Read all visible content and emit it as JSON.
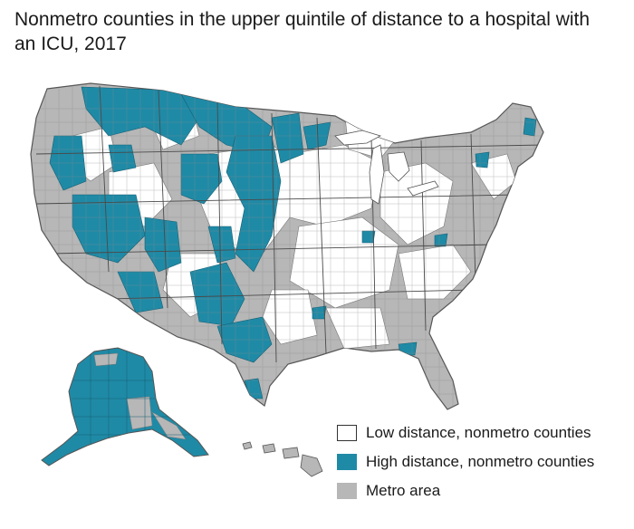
{
  "title": "Nonmetro counties in the upper quintile of distance to a hospital with an ICU, 2017",
  "colors": {
    "low_distance": "#ffffff",
    "high_distance": "#1f8aa6",
    "metro": "#b7b7b7",
    "border": "#555555"
  },
  "legend": [
    {
      "label": "Low distance, nonmetro counties",
      "color": "#ffffff"
    },
    {
      "label": "High distance, nonmetro counties",
      "color": "#1f8aa6"
    },
    {
      "label": "Metro area",
      "color": "#b7b7b7"
    }
  ]
}
